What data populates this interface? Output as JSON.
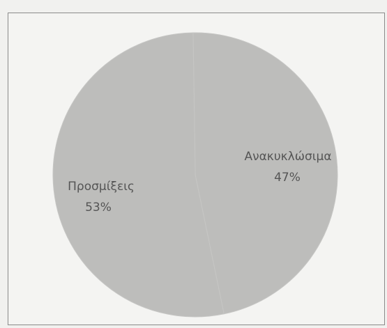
{
  "chart_data": {
    "type": "pie",
    "title": "",
    "categories": [
      "Ανακυκλώσιμα",
      "Προσμίξεις"
    ],
    "values": [
      47,
      53
    ],
    "data_labels": [
      "47%",
      "53%"
    ],
    "colors": [
      "#bdbdbb",
      "#bdbdbb"
    ],
    "legend": "none"
  }
}
